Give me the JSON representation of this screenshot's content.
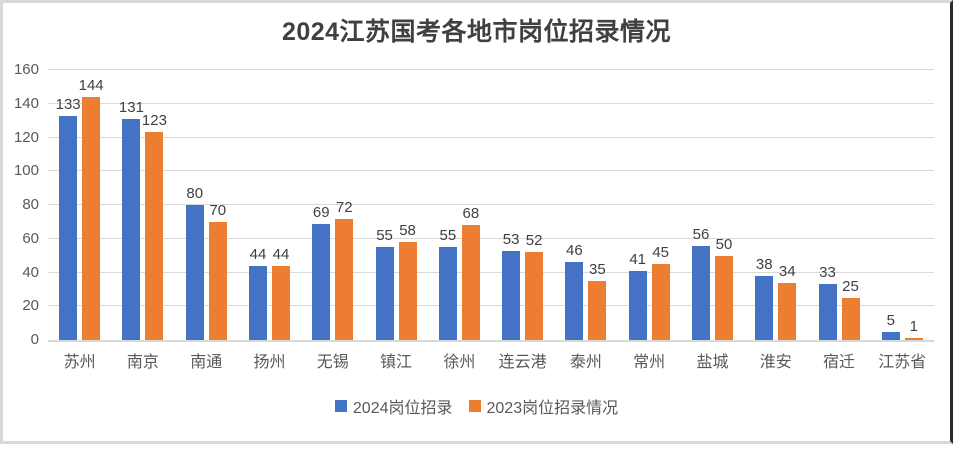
{
  "title": "2024江苏国考各地市岗位招录情况",
  "colors": {
    "series_2024": "#4472C4",
    "series_2023": "#ED7D31",
    "gridline": "#D9D9D9",
    "axis_text": "#595959",
    "value_label_text": "#404040",
    "title_text": "#404040"
  },
  "chart_data": {
    "type": "bar",
    "title": "2024江苏国考各地市岗位招录情况",
    "categories": [
      "苏州",
      "南京",
      "南通",
      "扬州",
      "无锡",
      "镇江",
      "徐州",
      "连云港",
      "泰州",
      "常州",
      "盐城",
      "淮安",
      "宿迁",
      "江苏省"
    ],
    "series": [
      {
        "name": "2024岗位招录",
        "color": "#4472C4",
        "values": [
          133,
          131,
          80,
          44,
          69,
          55,
          55,
          53,
          46,
          41,
          56,
          38,
          33,
          5
        ]
      },
      {
        "name": "2023岗位招录情况",
        "color": "#ED7D31",
        "values": [
          144,
          123,
          70,
          44,
          72,
          58,
          68,
          52,
          35,
          45,
          50,
          34,
          25,
          1
        ]
      }
    ],
    "xlabel": "",
    "ylabel": "",
    "ylim": [
      0,
      160
    ],
    "ytick_step": 20,
    "grid": true,
    "data_labels": true,
    "legend_position": "bottom"
  }
}
